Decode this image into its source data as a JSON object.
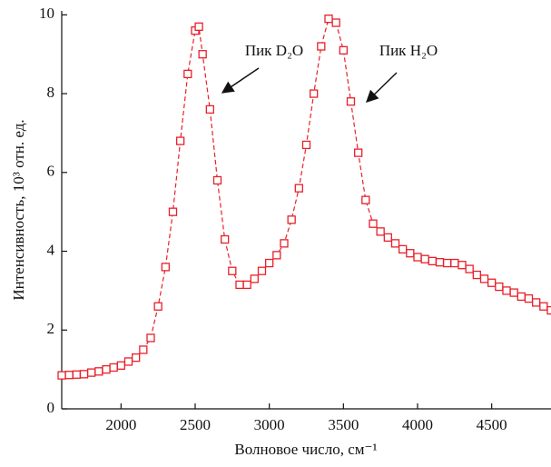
{
  "chart_data": {
    "type": "line",
    "marker": "square",
    "color": "#e8202a",
    "xlabel": "Волновое число, см⁻¹",
    "ylabel": "Интенсивность, 10³ отн. ед.",
    "annotations": [
      "Пик D₂O",
      "Пик H₂O"
    ],
    "x": [
      1600,
      1650,
      1700,
      1750,
      1800,
      1850,
      1900,
      1950,
      2000,
      2050,
      2100,
      2150,
      2200,
      2250,
      2300,
      2350,
      2400,
      2450,
      2500,
      2525,
      2550,
      2600,
      2650,
      2700,
      2750,
      2800,
      2850,
      2900,
      2950,
      3000,
      3050,
      3100,
      3150,
      3200,
      3250,
      3300,
      3350,
      3400,
      3450,
      3500,
      3550,
      3600,
      3650,
      3700,
      3750,
      3800,
      3850,
      3900,
      3950,
      4000,
      4050,
      4100,
      4150,
      4200,
      4250,
      4300,
      4350,
      4400,
      4450,
      4500,
      4550,
      4600,
      4650,
      4700,
      4750,
      4800,
      4850,
      4900
    ],
    "values": [
      0.85,
      0.86,
      0.87,
      0.88,
      0.92,
      0.95,
      1.0,
      1.05,
      1.1,
      1.2,
      1.3,
      1.5,
      1.8,
      2.6,
      3.6,
      5.0,
      6.8,
      8.5,
      9.6,
      9.7,
      9.0,
      7.6,
      5.8,
      4.3,
      3.5,
      3.15,
      3.15,
      3.3,
      3.5,
      3.7,
      3.9,
      4.2,
      4.8,
      5.6,
      6.7,
      8.0,
      9.2,
      9.9,
      9.8,
      9.1,
      7.8,
      6.5,
      5.3,
      4.7,
      4.5,
      4.35,
      4.2,
      4.05,
      3.95,
      3.85,
      3.8,
      3.75,
      3.72,
      3.7,
      3.7,
      3.65,
      3.55,
      3.4,
      3.3,
      3.2,
      3.1,
      3.0,
      2.95,
      2.85,
      2.8,
      2.7,
      2.6,
      2.5
    ],
    "xlim": [
      1600,
      4900
    ],
    "xticks": [
      2000,
      2500,
      3000,
      3500,
      4000,
      4500
    ],
    "ylim": [
      0,
      10.1
    ],
    "yticks": [
      0,
      2,
      4,
      6,
      8,
      10
    ]
  }
}
